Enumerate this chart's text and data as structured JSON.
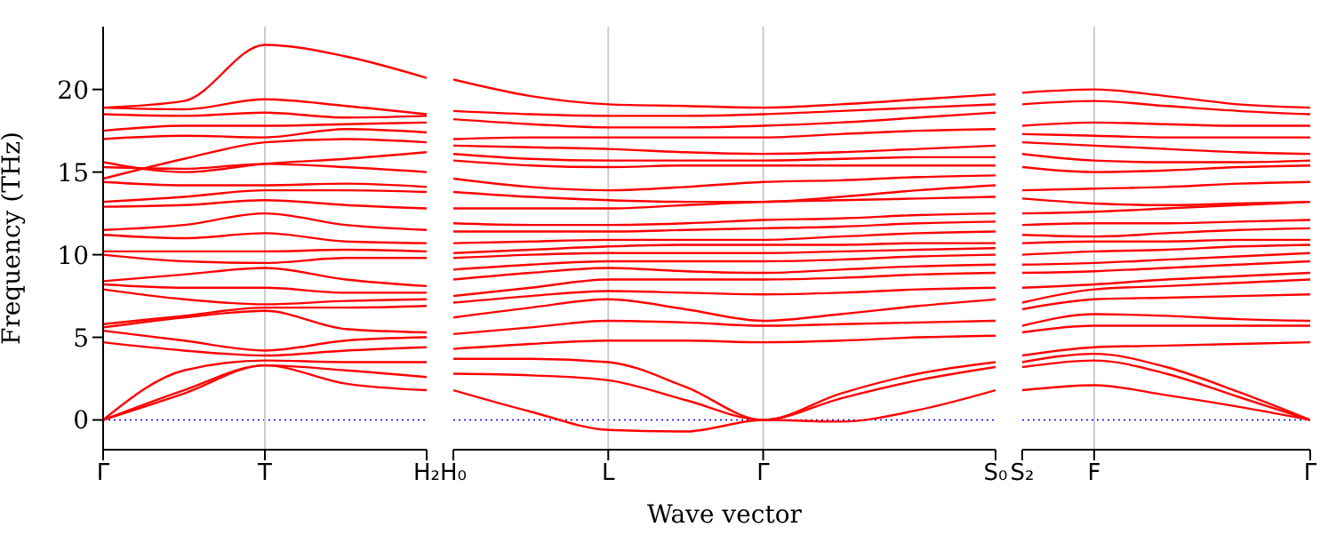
{
  "chart_data": [
    {
      "type": "line",
      "ylabel": "Frequency (THz)",
      "categories": [
        "Γ",
        null,
        "T",
        null,
        "H₂"
      ],
      "ylim": [
        -1.8,
        23.8
      ],
      "yticks": [
        0,
        5,
        10,
        15,
        20
      ],
      "marker": "none",
      "line_style": "solid",
      "ref_lines": [
        {
          "axis": "y",
          "value": 0,
          "color": "#0000ff",
          "line_style": "dotted"
        },
        {
          "axis": "x",
          "value": "T",
          "color": "#cccccc",
          "line_style": "solid"
        }
      ],
      "series": [
        {
          "color": "#ff0000",
          "values": [
            0,
            1.6,
            3.3,
            2.2,
            1.8
          ]
        },
        {
          "color": "#ff0000",
          "values": [
            0,
            1.8,
            3.3,
            3.0,
            2.6
          ]
        },
        {
          "color": "#ff0000",
          "values": [
            0,
            3.0,
            3.6,
            3.5,
            3.5
          ]
        },
        {
          "color": "#ff0000",
          "values": [
            4.7,
            4.2,
            3.9,
            4.2,
            4.4
          ]
        },
        {
          "color": "#ff0000",
          "values": [
            5.4,
            4.8,
            4.2,
            4.8,
            5.0
          ]
        },
        {
          "color": "#ff0000",
          "values": [
            5.6,
            6.2,
            6.6,
            5.5,
            5.3
          ]
        },
        {
          "color": "#ff0000",
          "values": [
            5.8,
            6.3,
            6.8,
            6.8,
            6.9
          ]
        },
        {
          "color": "#ff0000",
          "values": [
            7.9,
            7.3,
            7.0,
            7.2,
            7.3
          ]
        },
        {
          "color": "#ff0000",
          "values": [
            8.2,
            8.0,
            8.0,
            7.7,
            7.7
          ]
        },
        {
          "color": "#ff0000",
          "values": [
            8.4,
            8.8,
            9.2,
            8.5,
            8.1
          ]
        },
        {
          "color": "#ff0000",
          "values": [
            10.0,
            9.6,
            9.5,
            9.8,
            9.8
          ]
        },
        {
          "color": "#ff0000",
          "values": [
            10.2,
            10.2,
            10.2,
            10.3,
            10.2
          ]
        },
        {
          "color": "#ff0000",
          "values": [
            11.2,
            11.0,
            11.3,
            10.8,
            10.7
          ]
        },
        {
          "color": "#ff0000",
          "values": [
            11.5,
            11.8,
            12.5,
            11.8,
            11.5
          ]
        },
        {
          "color": "#ff0000",
          "values": [
            12.9,
            13.0,
            13.3,
            13.0,
            12.8
          ]
        },
        {
          "color": "#ff0000",
          "values": [
            13.2,
            13.5,
            13.9,
            13.9,
            13.8
          ]
        },
        {
          "color": "#ff0000",
          "values": [
            14.4,
            14.2,
            14.2,
            14.3,
            14.1
          ]
        },
        {
          "color": "#ff0000",
          "values": [
            15.3,
            15.2,
            15.5,
            15.3,
            15.0
          ]
        },
        {
          "color": "#ff0000",
          "values": [
            15.6,
            15.0,
            15.5,
            15.8,
            16.2
          ]
        },
        {
          "color": "#ff0000",
          "values": [
            14.6,
            15.8,
            16.8,
            17.0,
            16.8
          ]
        },
        {
          "color": "#ff0000",
          "values": [
            17.0,
            17.2,
            17.1,
            17.6,
            17.4
          ]
        },
        {
          "color": "#ff0000",
          "values": [
            17.5,
            17.8,
            17.8,
            17.9,
            18.0
          ]
        },
        {
          "color": "#ff0000",
          "values": [
            18.5,
            18.4,
            18.6,
            18.3,
            18.4
          ]
        },
        {
          "color": "#ff0000",
          "values": [
            18.9,
            18.8,
            19.4,
            19.0,
            18.5
          ]
        },
        {
          "color": "#ff0000",
          "values": [
            18.9,
            19.3,
            22.7,
            22.0,
            20.7
          ]
        }
      ]
    },
    {
      "type": "line",
      "xlabel": "Wave vector",
      "categories": [
        "H₀",
        null,
        "L",
        null,
        "Γ",
        null,
        null,
        "S₀"
      ],
      "ylim": [
        -1.8,
        23.8
      ],
      "yticks": [
        0,
        5,
        10,
        15,
        20
      ],
      "tick_labels": "x",
      "marker": "none",
      "line_style": "solid",
      "ref_lines": [
        {
          "axis": "y",
          "value": 0,
          "color": "#0000ff",
          "line_style": "dotted"
        },
        {
          "axis": "x",
          "value": "L",
          "color": "#cccccc",
          "line_style": "solid"
        },
        {
          "axis": "x",
          "value": "Γ",
          "color": "#cccccc",
          "line_style": "solid"
        }
      ],
      "series": [
        {
          "color": "#ff0000",
          "values": [
            1.8,
            0.5,
            -0.6,
            -0.7,
            0,
            -0.1,
            0.6,
            1.8
          ]
        },
        {
          "color": "#ff0000",
          "values": [
            2.8,
            2.7,
            2.4,
            1.2,
            0,
            1.3,
            2.4,
            3.2
          ]
        },
        {
          "color": "#ff0000",
          "values": [
            3.7,
            3.7,
            3.5,
            2.0,
            0,
            1.6,
            2.8,
            3.5
          ]
        },
        {
          "color": "#ff0000",
          "values": [
            4.3,
            4.6,
            4.8,
            4.8,
            4.7,
            4.8,
            5.0,
            5.1
          ]
        },
        {
          "color": "#ff0000",
          "values": [
            5.2,
            5.6,
            6.0,
            5.9,
            5.7,
            5.8,
            5.9,
            6.0
          ]
        },
        {
          "color": "#ff0000",
          "values": [
            6.2,
            6.8,
            7.3,
            6.7,
            6.0,
            6.4,
            6.9,
            7.3
          ]
        },
        {
          "color": "#ff0000",
          "values": [
            7.1,
            7.5,
            7.8,
            7.7,
            7.6,
            7.7,
            7.9,
            8.0
          ]
        },
        {
          "color": "#ff0000",
          "values": [
            7.5,
            8.0,
            8.5,
            8.5,
            8.5,
            8.6,
            8.8,
            8.9
          ]
        },
        {
          "color": "#ff0000",
          "values": [
            8.5,
            8.9,
            9.2,
            9.0,
            8.9,
            9.1,
            9.3,
            9.4
          ]
        },
        {
          "color": "#ff0000",
          "values": [
            9.1,
            9.4,
            9.6,
            9.6,
            9.6,
            9.7,
            9.9,
            10.0
          ]
        },
        {
          "color": "#ff0000",
          "values": [
            9.8,
            10.0,
            10.1,
            10.1,
            10.1,
            10.2,
            10.3,
            10.4
          ]
        },
        {
          "color": "#ff0000",
          "values": [
            10.1,
            10.3,
            10.5,
            10.6,
            10.6,
            10.6,
            10.7,
            10.7
          ]
        },
        {
          "color": "#ff0000",
          "values": [
            10.7,
            10.8,
            10.9,
            10.9,
            10.9,
            11.1,
            11.3,
            11.4
          ]
        },
        {
          "color": "#ff0000",
          "values": [
            11.4,
            11.4,
            11.4,
            11.5,
            11.6,
            11.7,
            11.9,
            12.0
          ]
        },
        {
          "color": "#ff0000",
          "values": [
            11.9,
            11.8,
            11.8,
            11.9,
            12.1,
            12.2,
            12.4,
            12.5
          ]
        },
        {
          "color": "#ff0000",
          "values": [
            12.8,
            12.8,
            12.8,
            13.0,
            13.2,
            13.3,
            13.4,
            13.5
          ]
        },
        {
          "color": "#ff0000",
          "values": [
            13.8,
            13.5,
            13.3,
            13.2,
            13.2,
            13.5,
            13.9,
            14.2
          ]
        },
        {
          "color": "#ff0000",
          "values": [
            14.6,
            14.1,
            13.9,
            14.1,
            14.4,
            14.5,
            14.7,
            14.8
          ]
        },
        {
          "color": "#ff0000",
          "values": [
            15.7,
            15.4,
            15.3,
            15.4,
            15.4,
            15.4,
            15.4,
            15.4
          ]
        },
        {
          "color": "#ff0000",
          "values": [
            16.1,
            15.8,
            15.7,
            15.7,
            15.7,
            15.8,
            15.9,
            15.9
          ]
        },
        {
          "color": "#ff0000",
          "values": [
            16.6,
            16.5,
            16.4,
            16.2,
            16.1,
            16.2,
            16.4,
            16.6
          ]
        },
        {
          "color": "#ff0000",
          "values": [
            17.0,
            17.1,
            17.1,
            17.1,
            17.1,
            17.3,
            17.5,
            17.6
          ]
        },
        {
          "color": "#ff0000",
          "values": [
            18.2,
            17.9,
            17.7,
            17.7,
            17.8,
            18.0,
            18.3,
            18.6
          ]
        },
        {
          "color": "#ff0000",
          "values": [
            18.7,
            18.5,
            18.4,
            18.4,
            18.5,
            18.7,
            18.9,
            19.1
          ]
        },
        {
          "color": "#ff0000",
          "values": [
            20.6,
            19.6,
            19.1,
            19.0,
            18.9,
            19.1,
            19.4,
            19.7
          ]
        }
      ]
    },
    {
      "type": "line",
      "categories": [
        "S₂",
        "F",
        null,
        null,
        "Γ"
      ],
      "ylim": [
        -1.8,
        23.8
      ],
      "yticks": [
        0,
        5,
        10,
        15,
        20
      ],
      "tick_labels": "x",
      "marker": "none",
      "line_style": "solid",
      "ref_lines": [
        {
          "axis": "y",
          "value": 0,
          "color": "#0000ff",
          "line_style": "dotted"
        },
        {
          "axis": "x",
          "value": "F",
          "color": "#cccccc",
          "line_style": "solid"
        }
      ],
      "series": [
        {
          "color": "#ff0000",
          "values": [
            1.8,
            2.1,
            1.5,
            0.8,
            0
          ]
        },
        {
          "color": "#ff0000",
          "values": [
            3.2,
            3.6,
            2.8,
            1.4,
            0
          ]
        },
        {
          "color": "#ff0000",
          "values": [
            3.5,
            4.0,
            3.2,
            1.7,
            0
          ]
        },
        {
          "color": "#ff0000",
          "values": [
            3.9,
            4.4,
            4.5,
            4.6,
            4.7
          ]
        },
        {
          "color": "#ff0000",
          "values": [
            5.3,
            5.7,
            5.7,
            5.7,
            5.7
          ]
        },
        {
          "color": "#ff0000",
          "values": [
            5.7,
            6.4,
            6.3,
            6.1,
            6.0
          ]
        },
        {
          "color": "#ff0000",
          "values": [
            6.7,
            7.3,
            7.4,
            7.5,
            7.6
          ]
        },
        {
          "color": "#ff0000",
          "values": [
            7.1,
            7.9,
            8.1,
            8.3,
            8.5
          ]
        },
        {
          "color": "#ff0000",
          "values": [
            8.0,
            8.2,
            8.5,
            8.7,
            8.9
          ]
        },
        {
          "color": "#ff0000",
          "values": [
            8.9,
            9.0,
            9.2,
            9.4,
            9.6
          ]
        },
        {
          "color": "#ff0000",
          "values": [
            9.4,
            9.5,
            9.7,
            9.9,
            10.1
          ]
        },
        {
          "color": "#ff0000",
          "values": [
            10.0,
            10.2,
            10.3,
            10.5,
            10.6
          ]
        },
        {
          "color": "#ff0000",
          "values": [
            10.7,
            10.8,
            10.8,
            10.9,
            10.9
          ]
        },
        {
          "color": "#ff0000",
          "values": [
            11.2,
            11.1,
            11.3,
            11.5,
            11.6
          ]
        },
        {
          "color": "#ff0000",
          "values": [
            11.8,
            11.9,
            11.9,
            12.0,
            12.1
          ]
        },
        {
          "color": "#ff0000",
          "values": [
            12.5,
            12.6,
            12.8,
            13.0,
            13.2
          ]
        },
        {
          "color": "#ff0000",
          "values": [
            13.4,
            13.1,
            13.0,
            13.1,
            13.2
          ]
        },
        {
          "color": "#ff0000",
          "values": [
            13.9,
            14.0,
            14.1,
            14.3,
            14.4
          ]
        },
        {
          "color": "#ff0000",
          "values": [
            15.3,
            15.0,
            15.1,
            15.3,
            15.4
          ]
        },
        {
          "color": "#ff0000",
          "values": [
            16.1,
            15.7,
            15.6,
            15.6,
            15.7
          ]
        },
        {
          "color": "#ff0000",
          "values": [
            16.8,
            16.6,
            16.4,
            16.2,
            16.1
          ]
        },
        {
          "color": "#ff0000",
          "values": [
            17.3,
            17.2,
            17.1,
            17.1,
            17.1
          ]
        },
        {
          "color": "#ff0000",
          "values": [
            17.8,
            18.0,
            17.9,
            17.8,
            17.8
          ]
        },
        {
          "color": "#ff0000",
          "values": [
            19.1,
            19.3,
            19.0,
            18.7,
            18.5
          ]
        },
        {
          "color": "#ff0000",
          "values": [
            19.8,
            20.0,
            19.6,
            19.1,
            18.9
          ]
        }
      ]
    }
  ]
}
